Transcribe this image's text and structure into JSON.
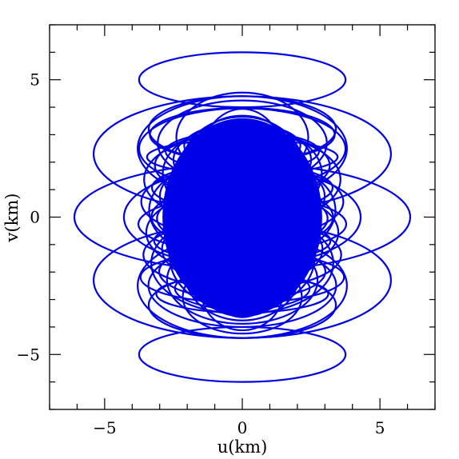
{
  "chart_data": {
    "type": "line",
    "title": "",
    "xlabel": "u(km)",
    "ylabel": "v(km)",
    "xlim": [
      -7,
      7
    ],
    "ylim": [
      -7,
      7
    ],
    "x_ticks": [
      {
        "value": -5,
        "label": "−5"
      },
      {
        "value": 0,
        "label": "0"
      },
      {
        "value": 5,
        "label": "5"
      }
    ],
    "y_ticks": [
      {
        "value": -5,
        "label": "−5"
      },
      {
        "value": 0,
        "label": "0"
      },
      {
        "value": 5,
        "label": "5"
      }
    ],
    "minor_tick_step": 1,
    "grid": false,
    "legend": "none",
    "line_color": "#0000e6",
    "series": [
      {
        "values": [
          {
            "u0": 0,
            "v0": 0,
            "a": 6.1,
            "b": 1.95
          },
          {
            "u0": 0,
            "v0": 2.3,
            "a": 5.4,
            "b": 2.1
          },
          {
            "u0": 0,
            "v0": -2.3,
            "a": 5.4,
            "b": 2.1
          },
          {
            "u0": 0,
            "v0": 5.0,
            "a": 3.75,
            "b": 1.0
          },
          {
            "u0": 0,
            "v0": -5.0,
            "a": 3.75,
            "b": 1.0
          },
          {
            "u0": 0,
            "v0": 0,
            "a": 4.3,
            "b": 1.8
          },
          {
            "u0": 0,
            "v0": 0,
            "a": 3.3,
            "b": 1.2
          },
          {
            "u0": 0,
            "v0": 2.5,
            "a": 3.8,
            "b": 1.9
          },
          {
            "u0": 0,
            "v0": -2.5,
            "a": 3.8,
            "b": 1.9
          },
          {
            "u0": 0,
            "v0": 3.2,
            "a": 3.4,
            "b": 1.2
          },
          {
            "u0": 0,
            "v0": -3.2,
            "a": 3.4,
            "b": 1.2
          }
        ]
      }
    ]
  }
}
